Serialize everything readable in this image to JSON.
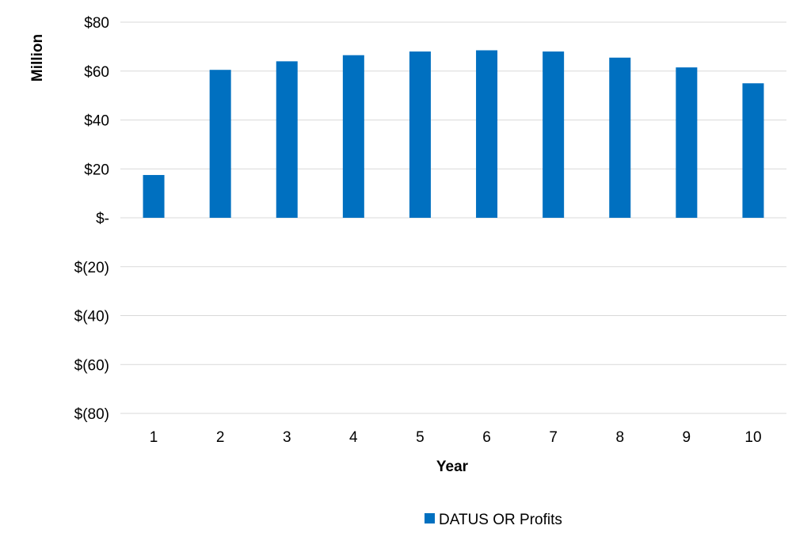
{
  "chart_data": {
    "type": "bar",
    "title": "",
    "xlabel": "Year",
    "ylabel": "Million",
    "categories": [
      "1",
      "2",
      "3",
      "4",
      "5",
      "6",
      "7",
      "8",
      "9",
      "10"
    ],
    "series": [
      {
        "name": "DATUS OR Profits",
        "color": "#0070C0",
        "values": [
          17.5,
          60.5,
          64,
          66.5,
          68,
          68.5,
          68,
          65.5,
          61.5,
          55
        ]
      }
    ],
    "ylim": [
      -80,
      80
    ],
    "yticks": [
      80,
      60,
      40,
      20,
      0,
      -20,
      -40,
      -60,
      -80
    ],
    "ytick_labels": [
      "$80",
      "$60",
      "$40",
      "$20",
      "$-",
      "$(20)",
      "$(40)",
      "$(60)",
      "$(80)"
    ],
    "grid": true,
    "grid_color": "#D9D9D9",
    "legend_position": "bottom"
  }
}
